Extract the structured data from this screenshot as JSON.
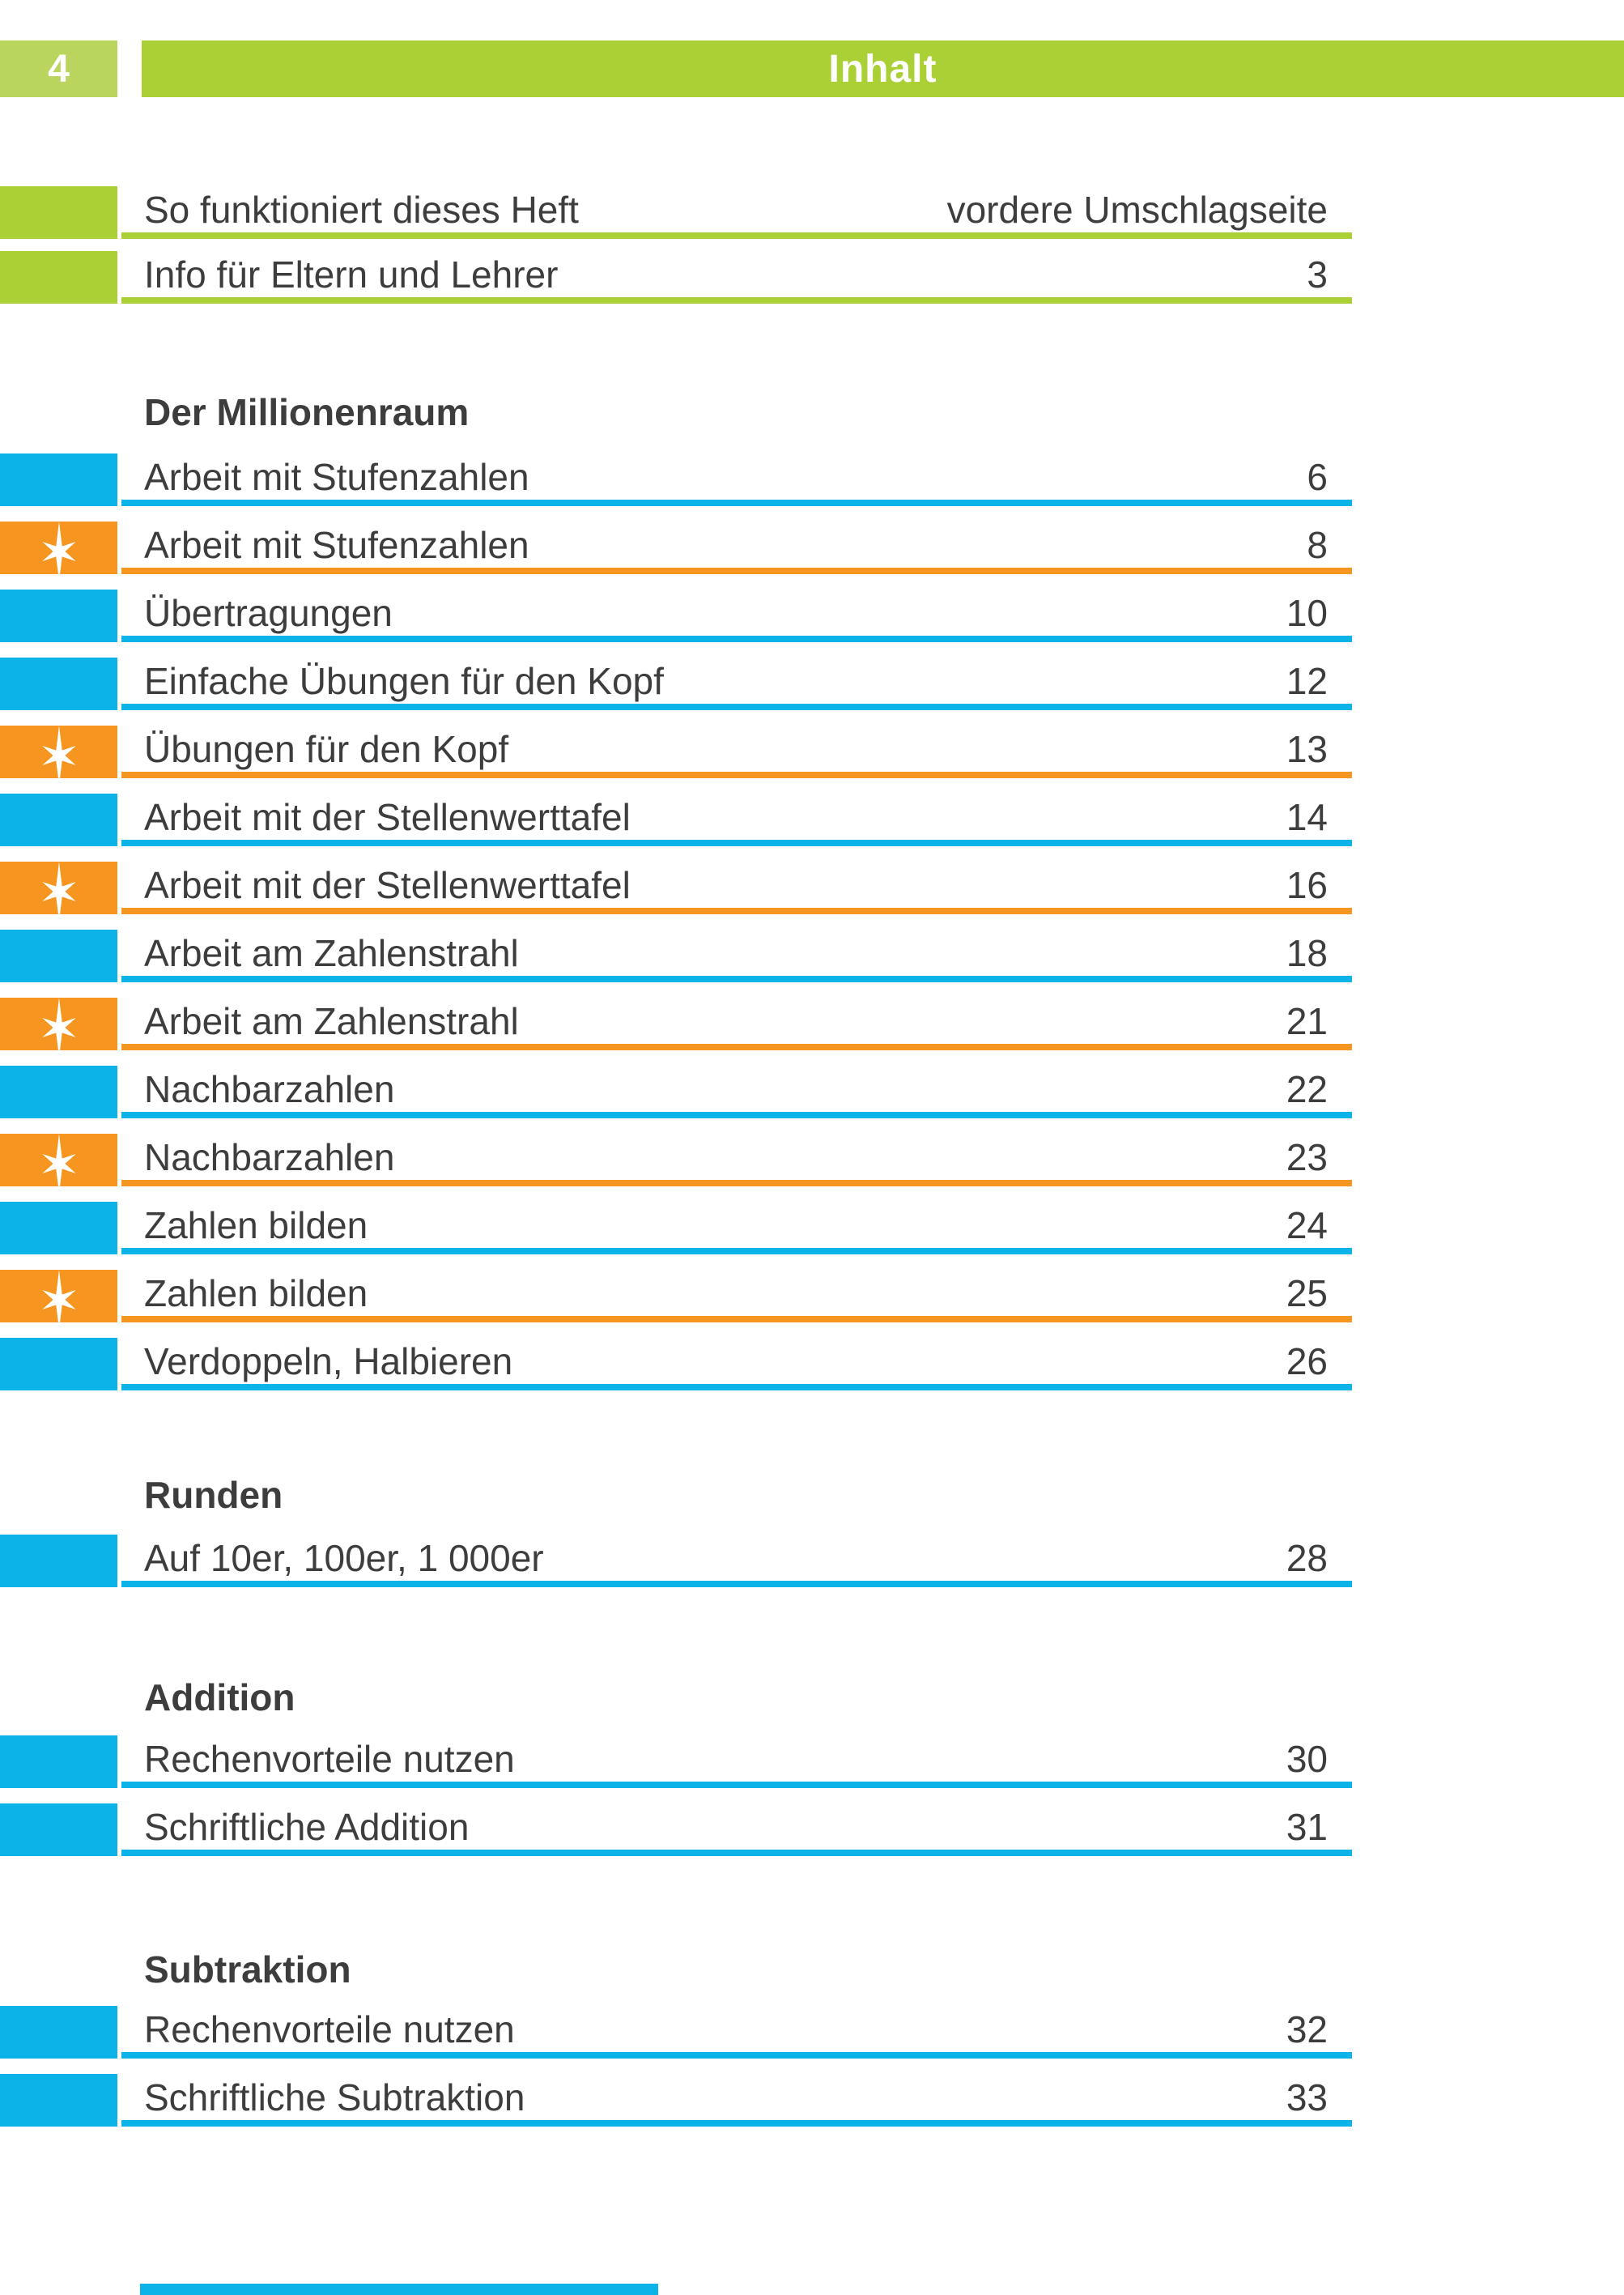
{
  "page": {
    "number": "4",
    "header_title": "Inhalt"
  },
  "colors": {
    "green": "#abd036",
    "green_light": "#bad55e",
    "blue": "#0cb3e8",
    "orange": "#f6951f",
    "text": "#3d3d3d"
  },
  "toc": {
    "front_entries": [
      {
        "title": "So funktioniert dieses Heft",
        "page": "vordere Umschlagseite",
        "color": "green",
        "starred": false
      },
      {
        "title": "Info für Eltern und Lehrer",
        "page": "3",
        "color": "green",
        "starred": false
      }
    ],
    "sections": [
      {
        "heading": "Der Millionenraum",
        "entries": [
          {
            "title": "Arbeit mit Stufenzahlen",
            "page": "6",
            "color": "blue",
            "starred": false
          },
          {
            "title": "Arbeit mit Stufenzahlen",
            "page": "8",
            "color": "orange",
            "starred": true
          },
          {
            "title": "Übertragungen",
            "page": "10",
            "color": "blue",
            "starred": false
          },
          {
            "title": "Einfache Übungen für den Kopf",
            "page": "12",
            "color": "blue",
            "starred": false
          },
          {
            "title": "Übungen für den Kopf",
            "page": "13",
            "color": "orange",
            "starred": true
          },
          {
            "title": "Arbeit mit der Stellenwerttafel",
            "page": "14",
            "color": "blue",
            "starred": false
          },
          {
            "title": "Arbeit mit der Stellenwerttafel",
            "page": "16",
            "color": "orange",
            "starred": true
          },
          {
            "title": "Arbeit am Zahlenstrahl",
            "page": "18",
            "color": "blue",
            "starred": false
          },
          {
            "title": "Arbeit am Zahlenstrahl",
            "page": "21",
            "color": "orange",
            "starred": true
          },
          {
            "title": "Nachbarzahlen",
            "page": "22",
            "color": "blue",
            "starred": false
          },
          {
            "title": "Nachbarzahlen",
            "page": "23",
            "color": "orange",
            "starred": true
          },
          {
            "title": "Zahlen bilden",
            "page": "24",
            "color": "blue",
            "starred": false
          },
          {
            "title": "Zahlen bilden",
            "page": "25",
            "color": "orange",
            "starred": true
          },
          {
            "title": "Verdoppeln, Halbieren",
            "page": "26",
            "color": "blue",
            "starred": false
          }
        ]
      },
      {
        "heading": "Runden",
        "entries": [
          {
            "title": "Auf 10er, 100er, 1 000er",
            "page": "28",
            "color": "blue",
            "starred": false
          }
        ]
      },
      {
        "heading": "Addition",
        "entries": [
          {
            "title": "Rechenvorteile nutzen",
            "page": "30",
            "color": "blue",
            "starred": false
          },
          {
            "title": "Schriftliche Addition",
            "page": "31",
            "color": "blue",
            "starred": false
          }
        ]
      },
      {
        "heading": "Subtraktion",
        "entries": [
          {
            "title": "Rechenvorteile nutzen",
            "page": "32",
            "color": "blue",
            "starred": false
          },
          {
            "title": "Schriftliche Subtraktion",
            "page": "33",
            "color": "blue",
            "starred": false
          }
        ]
      }
    ]
  },
  "footer": {
    "partial_next_row_marker": "blue"
  }
}
